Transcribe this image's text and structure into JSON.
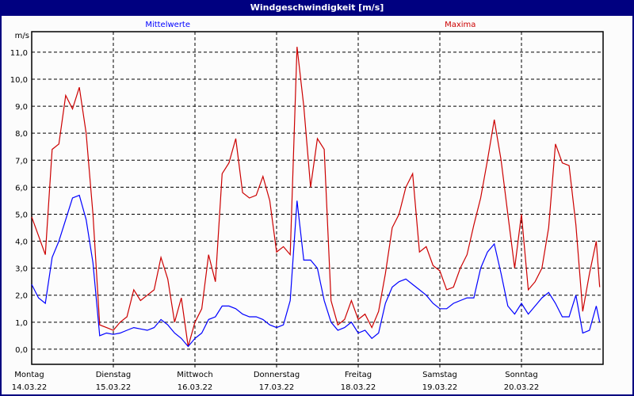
{
  "window": {
    "title": "Windgeschwindigkeit [m/s]"
  },
  "chart_data": {
    "type": "line",
    "title": "Windgeschwindigkeit [m/s]",
    "ylabel": "m/s",
    "ylim": [
      -0.56,
      11.76
    ],
    "yticks": [
      0,
      1,
      2,
      3,
      4,
      5,
      6,
      7,
      8,
      9,
      10,
      11
    ],
    "ytick_labels": [
      "0,0",
      "1,0",
      "2,0",
      "3,0",
      "4,0",
      "5,0",
      "6,0",
      "7,0",
      "8,0",
      "9,0",
      "10,0",
      "11,0"
    ],
    "grid": true,
    "x_unit": "hours since start of Montag 14.03.22",
    "xlim": [
      0,
      168
    ],
    "xticks": [
      {
        "day": "Montag",
        "date": "14.03.22"
      },
      {
        "day": "Dienstag",
        "date": "15.03.22"
      },
      {
        "day": "Mittwoch",
        "date": "16.03.22"
      },
      {
        "day": "Donnerstag",
        "date": "17.03.22"
      },
      {
        "day": "Freitag",
        "date": "18.03.22"
      },
      {
        "day": "Samstag",
        "date": "19.03.22"
      },
      {
        "day": "Sonntag",
        "date": "20.03.22"
      }
    ],
    "x": [
      0,
      2,
      4,
      6,
      8,
      10,
      12,
      14,
      16,
      18,
      20,
      22,
      24,
      26,
      28,
      30,
      32,
      34,
      36,
      38,
      40,
      42,
      44,
      46,
      48,
      50,
      52,
      54,
      56,
      58,
      60,
      62,
      64,
      66,
      68,
      70,
      72,
      74,
      76,
      78,
      80,
      82,
      84,
      86,
      88,
      90,
      92,
      94,
      96,
      98,
      100,
      102,
      104,
      106,
      108,
      110,
      112,
      114,
      116,
      118,
      120,
      122,
      124,
      126,
      128,
      130,
      132,
      134,
      136,
      138,
      140,
      142,
      144,
      146,
      148,
      150,
      152,
      154,
      156,
      158,
      160,
      162,
      164,
      166,
      167
    ],
    "series": [
      {
        "name": "Mittelwerte",
        "color": "#0000ff",
        "values": [
          2.4,
          1.9,
          1.7,
          3.4,
          4.0,
          4.8,
          5.6,
          5.7,
          4.8,
          3.2,
          0.5,
          0.6,
          0.55,
          0.6,
          0.7,
          0.8,
          0.75,
          0.7,
          0.8,
          1.1,
          0.9,
          0.6,
          0.4,
          0.1,
          0.4,
          0.6,
          1.1,
          1.2,
          1.6,
          1.6,
          1.5,
          1.3,
          1.2,
          1.2,
          1.1,
          0.9,
          0.8,
          0.9,
          1.8,
          5.5,
          3.3,
          3.3,
          3.0,
          1.8,
          1.0,
          0.7,
          0.8,
          1.0,
          0.6,
          0.7,
          0.4,
          0.6,
          1.7,
          2.3,
          2.5,
          2.6,
          2.4,
          2.2,
          2.0,
          1.7,
          1.5,
          1.5,
          1.7,
          1.8,
          1.9,
          1.9,
          3.0,
          3.6,
          3.9,
          2.8,
          1.6,
          1.3,
          1.7,
          1.3,
          1.6,
          1.9,
          2.1,
          1.7,
          1.2,
          1.2,
          2.0,
          0.6,
          0.7,
          1.6,
          1.0
        ]
      },
      {
        "name": "Maxima",
        "color": "#cc0000",
        "values": [
          4.9,
          4.2,
          3.5,
          7.4,
          7.6,
          9.4,
          8.9,
          9.7,
          8.0,
          5.0,
          0.9,
          0.8,
          0.7,
          1.0,
          1.2,
          2.2,
          1.8,
          2.0,
          2.2,
          3.4,
          2.6,
          1.0,
          1.9,
          0.1,
          1.0,
          1.5,
          3.5,
          2.5,
          6.5,
          6.9,
          7.8,
          5.8,
          5.6,
          5.7,
          6.4,
          5.5,
          3.6,
          3.8,
          3.5,
          11.2,
          9.0,
          6.0,
          7.8,
          7.4,
          1.8,
          0.9,
          1.1,
          1.8,
          1.1,
          1.3,
          0.8,
          1.4,
          2.8,
          4.5,
          5.0,
          6.0,
          6.5,
          3.6,
          3.8,
          3.1,
          2.9,
          2.2,
          2.3,
          3.0,
          3.5,
          4.6,
          5.6,
          7.0,
          8.5,
          7.0,
          5.0,
          3.0,
          5.0,
          2.2,
          2.5,
          3.0,
          4.5,
          7.6,
          6.9,
          6.8,
          4.6,
          1.4,
          2.8,
          4.0,
          2.3
        ]
      }
    ]
  }
}
